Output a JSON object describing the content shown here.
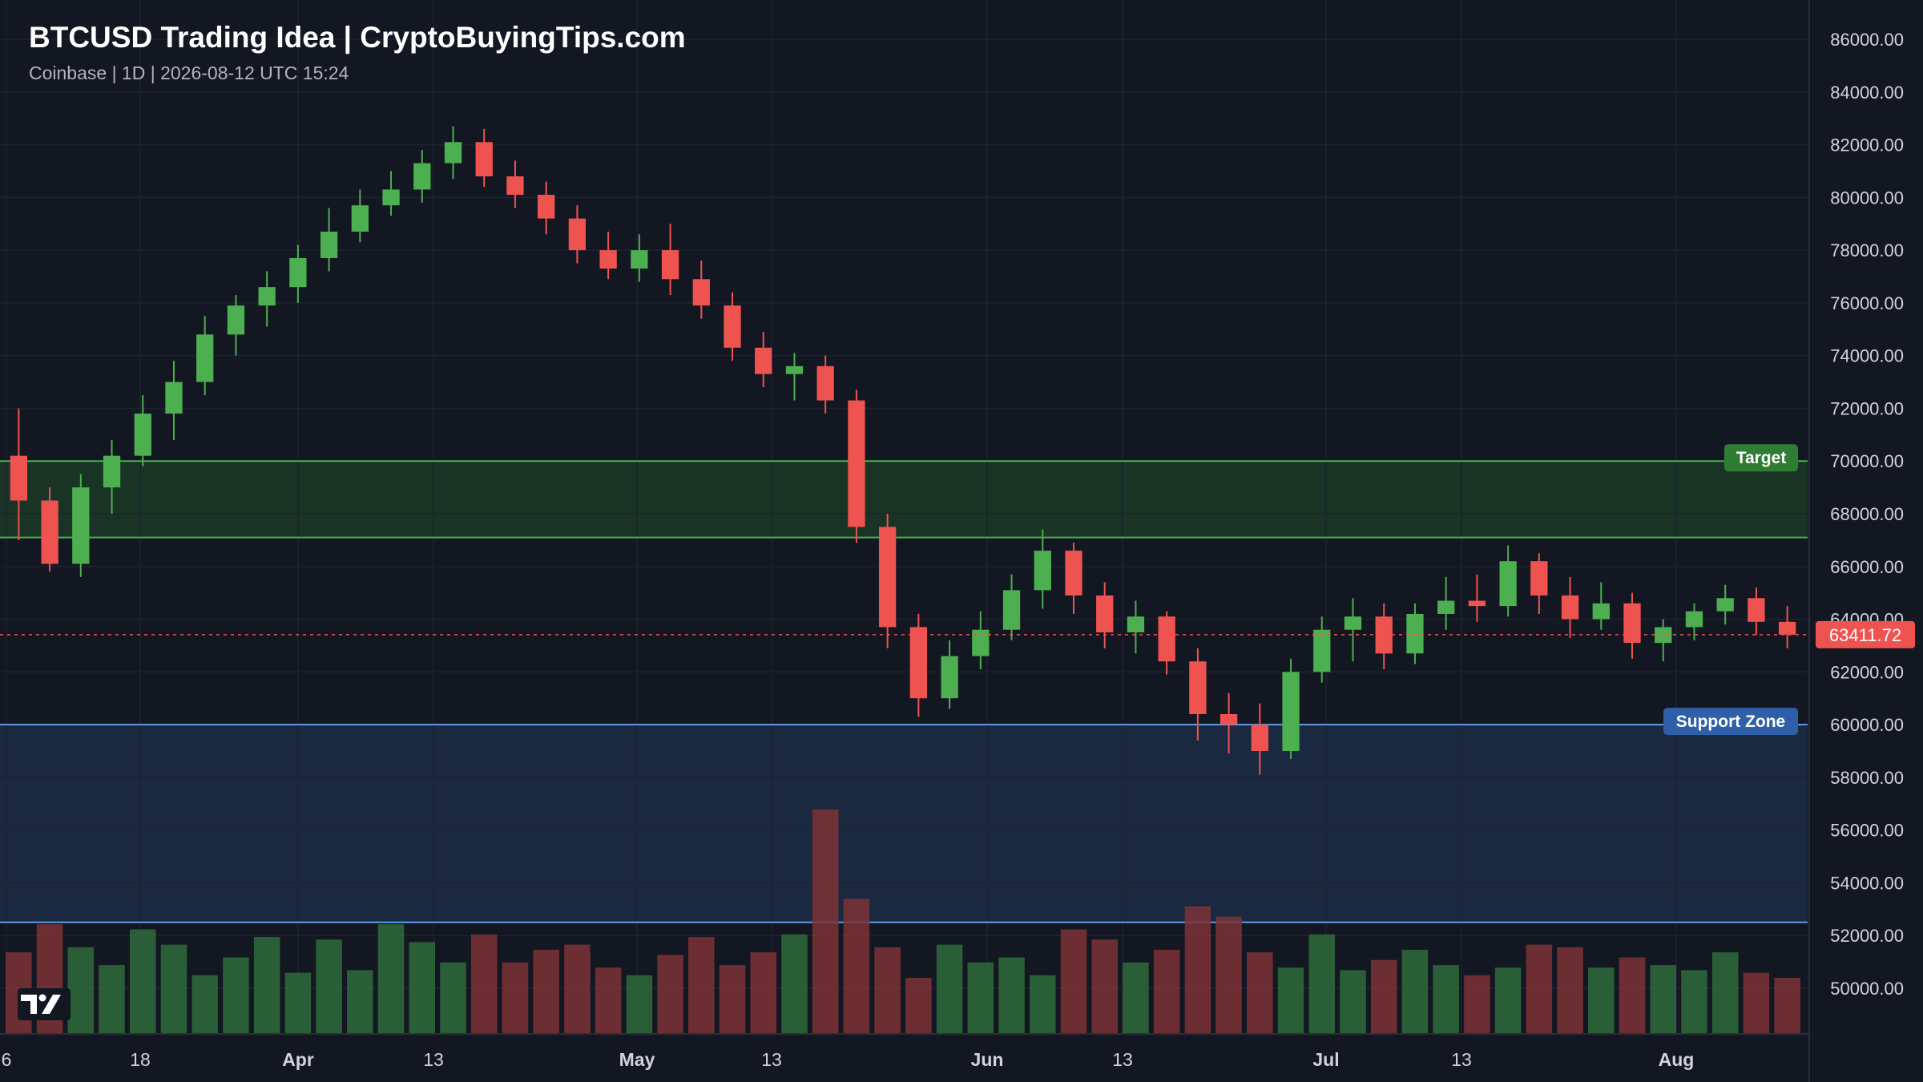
{
  "header": {
    "title": "BTCUSD Trading Idea | CryptoBuyingTips.com",
    "subtitle": "Coinbase | 1D | 2026-08-12 UTC 15:24"
  },
  "colors": {
    "background": "#131722",
    "grid": "#1e2230",
    "up": "#26a69a",
    "up_candle": "#4caf50",
    "down": "#ef5350",
    "target_zone": "#1b3a26",
    "target_line": "#4caf50",
    "support_zone": "#1c2a44",
    "support_line": "#5b9cf0",
    "axis_text": "#d1d4dc"
  },
  "chart_data": {
    "type": "candlestick",
    "title": "BTCUSD Trading Idea | CryptoBuyingTips.com",
    "interval": "1D",
    "exchange": "Coinbase",
    "ylim": [
      48000,
      87000
    ],
    "y_ticks": [
      86000,
      84000,
      82000,
      80000,
      78000,
      76000,
      74000,
      72000,
      70000,
      68000,
      66000,
      64000,
      62000,
      60000,
      58000,
      56000,
      54000,
      52000,
      50000
    ],
    "x_tick_labels": [
      "6",
      "18",
      "Apr",
      "13",
      "May",
      "13",
      "Jun",
      "13",
      "Jul",
      "13",
      "Aug"
    ],
    "last_price": 63411.72,
    "last_price_label": "63411.72",
    "zones": [
      {
        "name": "Target",
        "label": "Target",
        "from": 67100,
        "to": 70000
      },
      {
        "name": "Support Zone",
        "label": "Support Zone",
        "from": 52500,
        "to": 60000
      }
    ],
    "ohlc": [
      [
        70200,
        72000,
        67000,
        68500
      ],
      [
        68500,
        69000,
        65800,
        66100
      ],
      [
        66100,
        69500,
        65600,
        69000
      ],
      [
        69000,
        70800,
        68000,
        70200
      ],
      [
        70200,
        72500,
        69800,
        71800
      ],
      [
        71800,
        73800,
        70800,
        73000
      ],
      [
        73000,
        75500,
        72500,
        74800
      ],
      [
        74800,
        76300,
        74000,
        75900
      ],
      [
        75900,
        77200,
        75100,
        76600
      ],
      [
        76600,
        78200,
        76000,
        77700
      ],
      [
        77700,
        79600,
        77200,
        78700
      ],
      [
        78700,
        80300,
        78300,
        79700
      ],
      [
        79700,
        81000,
        79300,
        80300
      ],
      [
        80300,
        81800,
        79800,
        81300
      ],
      [
        81300,
        82700,
        80700,
        82100
      ],
      [
        82100,
        82600,
        80400,
        80800
      ],
      [
        80800,
        81400,
        79600,
        80100
      ],
      [
        80100,
        80600,
        78600,
        79200
      ],
      [
        79200,
        79700,
        77500,
        78000
      ],
      [
        78000,
        78700,
        76900,
        77300
      ],
      [
        77300,
        78600,
        76800,
        78000
      ],
      [
        78000,
        79000,
        76300,
        76900
      ],
      [
        76900,
        77600,
        75400,
        75900
      ],
      [
        75900,
        76400,
        73800,
        74300
      ],
      [
        74300,
        74900,
        72800,
        73300
      ],
      [
        73300,
        74100,
        72300,
        73600
      ],
      [
        73600,
        74000,
        71800,
        72300
      ],
      [
        72300,
        72700,
        66900,
        67500
      ],
      [
        67500,
        68000,
        62900,
        63700
      ],
      [
        63700,
        64200,
        60300,
        61000
      ],
      [
        61000,
        63200,
        60600,
        62600
      ],
      [
        62600,
        64300,
        62100,
        63600
      ],
      [
        63600,
        65700,
        63200,
        65100
      ],
      [
        65100,
        67400,
        64400,
        66600
      ],
      [
        66600,
        66900,
        64200,
        64900
      ],
      [
        64900,
        65400,
        62900,
        63500
      ],
      [
        63500,
        64700,
        62700,
        64100
      ],
      [
        64100,
        64300,
        61900,
        62400
      ],
      [
        62400,
        62900,
        59400,
        60400
      ],
      [
        60400,
        61200,
        58900,
        60000
      ],
      [
        60000,
        60800,
        58100,
        59000
      ],
      [
        59000,
        62500,
        58700,
        62000
      ],
      [
        62000,
        64100,
        61600,
        63600
      ],
      [
        63600,
        64800,
        62400,
        64100
      ],
      [
        64100,
        64600,
        62100,
        62700
      ],
      [
        62700,
        64600,
        62300,
        64200
      ],
      [
        64200,
        65600,
        63600,
        64700
      ],
      [
        64700,
        65700,
        63900,
        64500
      ],
      [
        64500,
        66800,
        64100,
        66200
      ],
      [
        66200,
        66500,
        64200,
        64900
      ],
      [
        64900,
        65600,
        63300,
        64000
      ],
      [
        64000,
        65400,
        63600,
        64600
      ],
      [
        64600,
        65000,
        62500,
        63100
      ],
      [
        63100,
        64000,
        62400,
        63700
      ],
      [
        63700,
        64600,
        63200,
        64300
      ],
      [
        64300,
        65300,
        63800,
        64800
      ],
      [
        64800,
        65200,
        63400,
        63900
      ],
      [
        63900,
        64500,
        62900,
        63411.72
      ]
    ],
    "volume": [
      51200,
      52300,
      51400,
      50700,
      52100,
      51500,
      50300,
      51000,
      51800,
      50400,
      51700,
      50500,
      52300,
      51600,
      50800,
      51900,
      50800,
      51300,
      51500,
      50600,
      50300,
      51100,
      51800,
      50700,
      51200,
      51900,
      56800,
      53300,
      51400,
      50200,
      51500,
      50800,
      51000,
      50300,
      52100,
      51700,
      50800,
      51300,
      53000,
      52600,
      51200,
      50600,
      51900,
      50500,
      50900,
      51300,
      50700,
      50300,
      50600,
      51500,
      51400,
      50600,
      51000,
      50700,
      50500,
      51200,
      50400,
      50200
    ]
  }
}
